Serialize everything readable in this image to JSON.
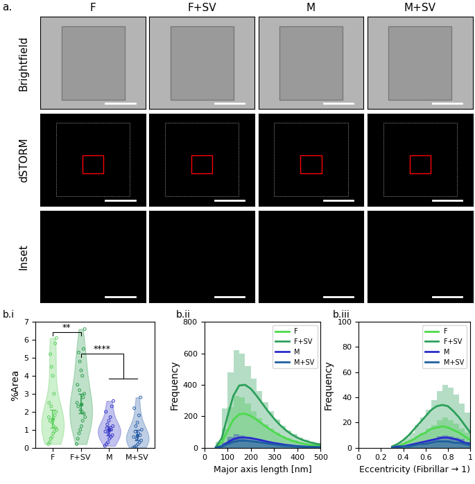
{
  "panel_a": {
    "label": "a.",
    "columns": [
      "F",
      "F+SV",
      "M",
      "M+SV"
    ],
    "rows": [
      "Brightfield",
      "dSTORM",
      "Inset"
    ]
  },
  "chart_data": [
    {
      "type": "violin",
      "panel": "b.i",
      "ylabel": "%Area",
      "categories": [
        "F",
        "F+SV",
        "M",
        "M+SV"
      ],
      "colors": [
        "#5ccf5c",
        "#2e9e4f",
        "#3535c8",
        "#2a5fa8"
      ],
      "points": [
        [
          0.2,
          0.3,
          0.5,
          0.6,
          0.8,
          0.9,
          1.0,
          1.1,
          1.2,
          1.4,
          1.5,
          1.7,
          1.8,
          2.0,
          2.3,
          2.5,
          3.0,
          4.0,
          4.5,
          5.2,
          5.8,
          6.1
        ],
        [
          0.2,
          0.5,
          0.8,
          1.0,
          1.2,
          1.5,
          1.7,
          1.9,
          2.0,
          2.1,
          2.3,
          2.5,
          2.8,
          3.0,
          3.2,
          3.5,
          4.0,
          4.3,
          4.8,
          5.3,
          5.5,
          6.6
        ],
        [
          0.1,
          0.2,
          0.3,
          0.5,
          0.6,
          0.7,
          0.8,
          0.9,
          1.0,
          1.0,
          1.1,
          1.2,
          1.3,
          1.5,
          1.7,
          2.0,
          2.3,
          2.6
        ],
        [
          0.0,
          0.05,
          0.1,
          0.2,
          0.3,
          0.4,
          0.5,
          0.6,
          0.7,
          0.8,
          0.9,
          1.0,
          1.2,
          1.4,
          1.8,
          2.2,
          2.8
        ]
      ],
      "centers": [
        1.6,
        2.4,
        1.0,
        0.7
      ],
      "error_low": [
        1.1,
        1.9,
        0.7,
        0.4
      ],
      "error_high": [
        2.1,
        3.0,
        1.2,
        1.0
      ],
      "significance": [
        {
          "label": "**",
          "groups": [
            "F",
            "F+SV"
          ]
        },
        {
          "label": "****",
          "groups": [
            "F+SV",
            "M",
            "M+SV"
          ]
        }
      ],
      "ylim": [
        0,
        7
      ],
      "yticks": [
        0,
        1,
        2,
        3,
        4,
        5,
        6,
        7
      ]
    },
    {
      "type": "histogram",
      "panel": "b.ii",
      "xlabel": "Major axis length [nm]",
      "ylabel": "Frequency",
      "xlim": [
        0,
        500
      ],
      "xticks": [
        0,
        100,
        200,
        300,
        400,
        500
      ],
      "ylim": [
        0,
        800
      ],
      "yticks": [
        0,
        200,
        400,
        600,
        800
      ],
      "legend": "upper right",
      "bins": [
        50,
        75,
        100,
        125,
        150,
        175,
        200,
        225,
        250,
        275,
        300,
        325,
        350,
        375,
        400,
        425,
        450,
        475,
        500
      ],
      "fit_x": [
        50,
        75,
        100,
        125,
        150,
        175,
        200,
        225,
        250,
        275,
        300,
        325,
        350,
        375,
        400,
        425,
        450,
        475,
        500
      ],
      "series": [
        {
          "name": "F",
          "color": "#4cd94c",
          "counts": [
            20,
            120,
            260,
            330,
            320,
            280,
            230,
            190,
            150,
            120,
            95,
            75,
            58,
            45,
            35,
            26,
            20,
            15
          ],
          "fit": [
            3,
            32,
            108,
            178,
            213,
            216,
            202,
            178,
            151,
            124,
            100,
            78,
            60,
            46,
            35,
            26,
            19,
            15,
            11
          ]
        },
        {
          "name": "F+SV",
          "color": "#2ca05a",
          "counts": [
            40,
            250,
            480,
            620,
            600,
            520,
            440,
            360,
            290,
            230,
            180,
            140,
            110,
            85,
            65,
            50,
            38,
            28
          ],
          "fit": [
            5,
            60,
            200,
            330,
            395,
            400,
            375,
            330,
            280,
            230,
            185,
            145,
            112,
            85,
            64,
            48,
            36,
            27,
            20
          ]
        },
        {
          "name": "M",
          "color": "#2a2acc",
          "counts": [
            5,
            35,
            70,
            85,
            80,
            70,
            60,
            50,
            40,
            32,
            25,
            20,
            15,
            12,
            9,
            7,
            5,
            4
          ],
          "fit": [
            1,
            10,
            33,
            54,
            64,
            65,
            61,
            54,
            46,
            37,
            30,
            24,
            18,
            14,
            10,
            8,
            6,
            4,
            3
          ]
        },
        {
          "name": "M+SV",
          "color": "#1f5fa0",
          "counts": [
            3,
            25,
            50,
            60,
            55,
            48,
            40,
            34,
            28,
            22,
            18,
            14,
            11,
            8,
            6,
            5,
            4,
            3
          ],
          "fit": [
            1,
            7,
            23,
            37,
            44,
            45,
            42,
            37,
            32,
            26,
            21,
            16,
            12,
            10,
            7,
            5,
            4,
            3,
            2
          ]
        }
      ]
    },
    {
      "type": "histogram",
      "panel": "b.iii",
      "xlabel": "Eccentricity (Fibrillar → 1)",
      "ylabel": "Frequency",
      "xlim": [
        0,
        1
      ],
      "xticks": [
        0,
        0.2,
        0.4,
        0.6,
        0.8,
        1
      ],
      "ylim": [
        0,
        100
      ],
      "yticks": [
        0,
        20,
        40,
        60,
        80,
        100
      ],
      "legend": "upper right",
      "bins": [
        0.3,
        0.35,
        0.4,
        0.45,
        0.5,
        0.55,
        0.6,
        0.65,
        0.7,
        0.75,
        0.8,
        0.85,
        0.9,
        0.95,
        1.0
      ],
      "fit_x": [
        0.3,
        0.35,
        0.4,
        0.45,
        0.5,
        0.55,
        0.6,
        0.65,
        0.7,
        0.75,
        0.8,
        0.85,
        0.9,
        0.95,
        1.0
      ],
      "series": [
        {
          "name": "F",
          "color": "#4cd94c",
          "counts": [
            1,
            2,
            4,
            6,
            9,
            12,
            15,
            18,
            22,
            24,
            22,
            19,
            15,
            12
          ],
          "fit": [
            0,
            1,
            3,
            5,
            7,
            10,
            12,
            15,
            16,
            17,
            16,
            14,
            12,
            9,
            6
          ]
        },
        {
          "name": "F+SV",
          "color": "#2ca05a",
          "counts": [
            2,
            4,
            8,
            12,
            18,
            24,
            30,
            38,
            45,
            50,
            48,
            42,
            35,
            28
          ],
          "fit": [
            1,
            3,
            6,
            10,
            15,
            20,
            25,
            30,
            33,
            34,
            33,
            29,
            24,
            18,
            12
          ]
        },
        {
          "name": "M",
          "color": "#2a2acc",
          "counts": [
            0,
            1,
            1,
            2,
            3,
            5,
            6,
            7,
            9,
            10,
            9,
            8,
            7,
            5
          ],
          "fit": [
            0,
            1,
            1,
            2,
            3,
            4,
            5,
            6,
            7,
            8,
            8,
            7,
            6,
            4,
            3
          ]
        },
        {
          "name": "M+SV",
          "color": "#1f5fa0",
          "counts": [
            0,
            0,
            1,
            1,
            2,
            3,
            4,
            4,
            5,
            6,
            6,
            5,
            4,
            3
          ],
          "fit": [
            0,
            0,
            1,
            1,
            2,
            3,
            3,
            4,
            5,
            5,
            5,
            4,
            4,
            3,
            2
          ]
        }
      ]
    }
  ]
}
